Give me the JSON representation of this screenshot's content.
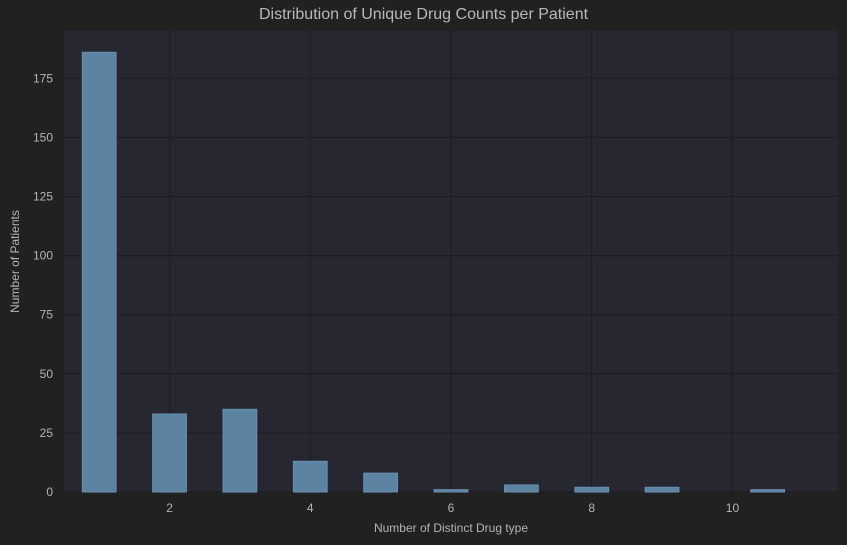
{
  "chart_data": {
    "type": "bar",
    "title": "Distribution of Unique Drug Counts per Patient",
    "xlabel": "Number of Distinct Drug type",
    "ylabel": "Number of Patients",
    "xlim": [
      0.5,
      11.5
    ],
    "ylim": [
      0,
      195
    ],
    "x_ticks": [
      2,
      4,
      6,
      8,
      10
    ],
    "y_ticks": [
      0,
      25,
      50,
      75,
      100,
      125,
      150,
      175
    ],
    "grid": true,
    "bar_width": 0.48,
    "bars": [
      {
        "x": 1.0,
        "value": 186
      },
      {
        "x": 2.0,
        "value": 33
      },
      {
        "x": 3.0,
        "value": 35
      },
      {
        "x": 4.0,
        "value": 13
      },
      {
        "x": 5.0,
        "value": 8
      },
      {
        "x": 6.0,
        "value": 1
      },
      {
        "x": 7.0,
        "value": 3
      },
      {
        "x": 8.0,
        "value": 2
      },
      {
        "x": 9.0,
        "value": 2
      },
      {
        "x": 10.5,
        "value": 1
      }
    ],
    "colors": {
      "background": "#212121",
      "plot_area": "#262730",
      "bar": "#5d83a2",
      "bar_edge": "#6a8fae",
      "grid": "#1c1c1f",
      "text": "#b4b4b4"
    }
  }
}
